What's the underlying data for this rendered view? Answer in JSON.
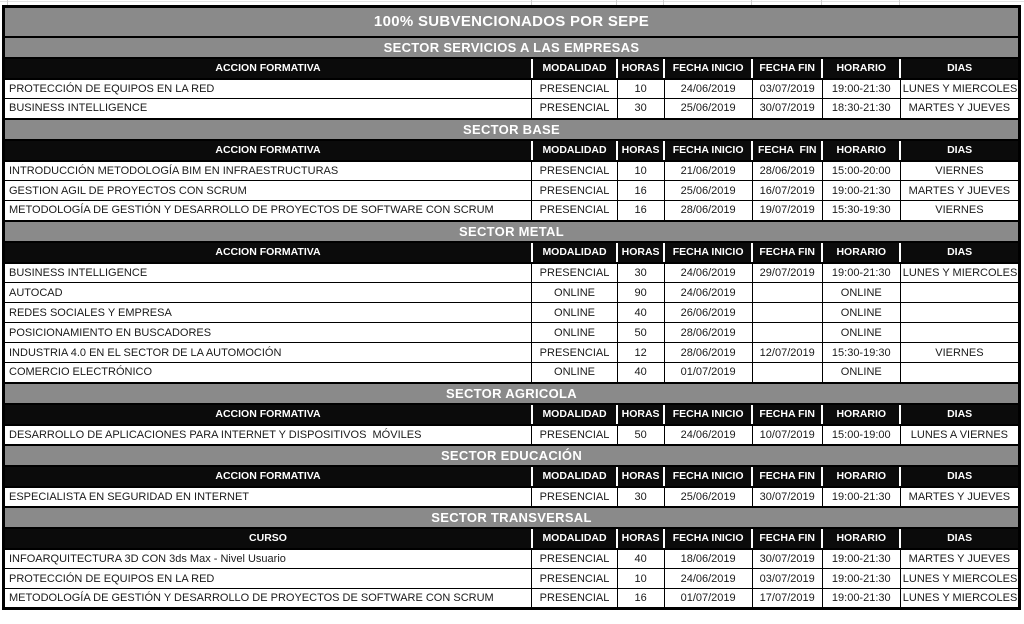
{
  "title": "100% SUBVENCIONADOS POR SEPE",
  "colors": {
    "band_background": "#8a8a8a",
    "column_header_background": "#0b0b0b",
    "band_text": "#ffffff",
    "column_header_text": "#ffffff",
    "row_background": "#ffffff",
    "border": "#000000"
  },
  "sections": [
    {
      "name": "SECTOR SERVICIOS A LAS EMPRESAS",
      "headers": [
        "ACCION FORMATIVA",
        "MODALIDAD",
        "HORAS",
        "FECHA INICIO",
        "FECHA FIN",
        "HORARIO",
        "DIAS"
      ],
      "rows": [
        [
          "PROTECCIÓN DE EQUIPOS EN LA RED",
          "PRESENCIAL",
          "10",
          "24/06/2019",
          "03/07/2019",
          "19:00-21:30",
          "LUNES Y MIERCOLES"
        ],
        [
          "BUSINESS INTELLIGENCE",
          "PRESENCIAL",
          "30",
          "25/06/2019",
          "30/07/2019",
          "18:30-21:30",
          "MARTES Y JUEVES"
        ]
      ]
    },
    {
      "name": "SECTOR BASE",
      "headers": [
        "ACCION FORMATIVA",
        "MODALIDAD",
        "HORAS",
        "FECHA INICIO",
        "FECHA  FIN",
        "HORARIO",
        "DIAS"
      ],
      "rows": [
        [
          "INTRODUCCIÓN METODOLOGÍA BIM EN INFRAESTRUCTURAS",
          "PRESENCIAL",
          "10",
          "21/06/2019",
          "28/06/2019",
          "15:00-20:00",
          "VIERNES"
        ],
        [
          "GESTION AGIL DE PROYECTOS CON SCRUM",
          "PRESENCIAL",
          "16",
          "25/06/2019",
          "16/07/2019",
          "19:00-21:30",
          "MARTES Y JUEVES"
        ],
        [
          "METODOLOGÍA DE GESTIÓN Y DESARROLLO DE PROYECTOS DE SOFTWARE CON SCRUM",
          "PRESENCIAL",
          "16",
          "28/06/2019",
          "19/07/2019",
          "15:30-19:30",
          "VIERNES"
        ]
      ]
    },
    {
      "name": "SECTOR METAL",
      "headers": [
        "ACCION FORMATIVA",
        "MODALIDAD",
        "HORAS",
        "FECHA INICIO",
        "FECHA FIN",
        "HORARIO",
        "DIAS"
      ],
      "rows": [
        [
          "BUSINESS INTELLIGENCE",
          "PRESENCIAL",
          "30",
          "24/06/2019",
          "29/07/2019",
          "19:00-21:30",
          "LUNES Y MIERCOLES"
        ],
        [
          "AUTOCAD",
          "ONLINE",
          "90",
          "24/06/2019",
          "",
          "ONLINE",
          ""
        ],
        [
          "REDES SOCIALES Y EMPRESA",
          "ONLINE",
          "40",
          "26/06/2019",
          "",
          "ONLINE",
          ""
        ],
        [
          "POSICIONAMIENTO EN BUSCADORES",
          "ONLINE",
          "50",
          "28/06/2019",
          "",
          "ONLINE",
          ""
        ],
        [
          "INDUSTRIA 4.0 EN EL SECTOR DE LA AUTOMOCIÓN",
          "PRESENCIAL",
          "12",
          "28/06/2019",
          "12/07/2019",
          "15:30-19:30",
          "VIERNES"
        ],
        [
          "COMERCIO ELECTRÓNICO",
          "ONLINE",
          "40",
          "01/07/2019",
          "",
          "ONLINE",
          ""
        ]
      ]
    },
    {
      "name": "SECTOR AGRICOLA",
      "headers": [
        "ACCION FORMATIVA",
        "MODALIDAD",
        "HORAS",
        "FECHA INICIO",
        "FECHA FIN",
        "HORARIO",
        "DIAS"
      ],
      "rows": [
        [
          "DESARROLLO DE APLICACIONES PARA INTERNET Y DISPOSITIVOS  MÓVILES",
          "PRESENCIAL",
          "50",
          "24/06/2019",
          "10/07/2019",
          "15:00-19:00",
          "LUNES A VIERNES"
        ]
      ]
    },
    {
      "name": "SECTOR EDUCACIÓN",
      "headers": [
        "ACCION FORMATIVA",
        "MODALIDAD",
        "HORAS",
        "FECHA INICIO",
        "FECHA FIN",
        "HORARIO",
        "DIAS"
      ],
      "rows": [
        [
          "ESPECIALISTA EN SEGURIDAD EN INTERNET",
          "PRESENCIAL",
          "30",
          "25/06/2019",
          "30/07/2019",
          "19:00-21:30",
          "MARTES Y JUEVES"
        ]
      ]
    },
    {
      "name": "SECTOR TRANSVERSAL",
      "headers": [
        "CURSO",
        "MODALIDAD",
        "HORAS",
        "FECHA INICIO",
        "FECHA FIN",
        "HORARIO",
        "DIAS"
      ],
      "rows": [
        [
          "INFOARQUITECTURA 3D CON 3ds Max - Nivel Usuario",
          "PRESENCIAL",
          "40",
          "18/06/2019",
          "30/07/2019",
          "19:00-21:30",
          "MARTES Y JUEVES"
        ],
        [
          "PROTECCIÓN DE EQUIPOS EN LA RED",
          "PRESENCIAL",
          "10",
          "24/06/2019",
          "03/07/2019",
          "19:00-21:30",
          "LUNES Y MIERCOLES"
        ],
        [
          "METODOLOGÍA DE GESTIÓN Y DESARROLLO DE PROYECTOS DE SOFTWARE CON SCRUM",
          "PRESENCIAL",
          "16",
          "01/07/2019",
          "17/07/2019",
          "19:00-21:30",
          "LUNES Y MIERCOLES"
        ]
      ]
    }
  ]
}
